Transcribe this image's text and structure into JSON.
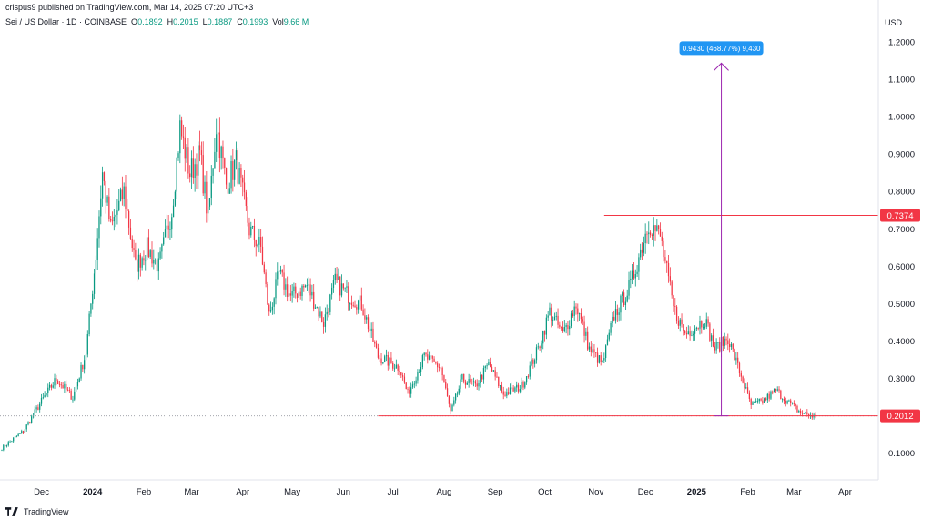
{
  "attribution": "crispus9 published on TradingView.com, Mar 14, 2025 07:20 UTC+3",
  "symbol": {
    "name": "Sei / US Dollar · 1D · COINBASE",
    "o_label": "O",
    "o": "0.1892",
    "h_label": "H",
    "h": "0.2015",
    "l_label": "L",
    "l": "0.1887",
    "c_label": "C",
    "c": "0.1993",
    "vol_label": "Vol",
    "vol": "9.66 M"
  },
  "currency": "USD",
  "footer": {
    "brand": "TradingView"
  },
  "colors": {
    "up": "#089981",
    "down": "#f23645",
    "line": "#f23645",
    "measure": "#9c27b0",
    "tooltip": "#2196f3",
    "label_bg": "#f23645"
  },
  "chart_data": {
    "type": "candlestick",
    "ylim": [
      0.03,
      1.24
    ],
    "y_ticks": [
      "1.2000",
      "1.1000",
      "1.0000",
      "0.9000",
      "0.8000",
      "0.7000",
      "0.6000",
      "0.5000",
      "0.4000",
      "0.3000",
      "0.1000"
    ],
    "y_tick_values": [
      1.2,
      1.1,
      1.0,
      0.9,
      0.8,
      0.7,
      0.6,
      0.5,
      0.4,
      0.3,
      0.1
    ],
    "x_ticks": [
      "Dec",
      "2024",
      "Feb",
      "Mar",
      "Apr",
      "May",
      "Jun",
      "Jul",
      "Aug",
      "Sep",
      "Oct",
      "Nov",
      "Dec",
      "2025",
      "Feb",
      "Mar",
      "Apr"
    ],
    "x_tick_dates": [
      "2023-12-01",
      "2024-01-01",
      "2024-02-01",
      "2024-03-01",
      "2024-04-01",
      "2024-05-01",
      "2024-06-01",
      "2024-07-01",
      "2024-08-01",
      "2024-09-01",
      "2024-10-01",
      "2024-11-01",
      "2024-12-01",
      "2025-01-01",
      "2025-02-01",
      "2025-03-01",
      "2025-04-01"
    ],
    "bold_ticks": [
      "2024",
      "2025"
    ],
    "date_range": [
      "2023-11-07",
      "2025-04-20"
    ],
    "anchors": [
      [
        "2023-11-07",
        0.115
      ],
      [
        "2023-11-20",
        0.16
      ],
      [
        "2023-12-01",
        0.24
      ],
      [
        "2023-12-10",
        0.3
      ],
      [
        "2023-12-20",
        0.25
      ],
      [
        "2023-12-28",
        0.37
      ],
      [
        "2024-01-03",
        0.63
      ],
      [
        "2024-01-07",
        0.85
      ],
      [
        "2024-01-12",
        0.7
      ],
      [
        "2024-01-20",
        0.8
      ],
      [
        "2024-01-27",
        0.6
      ],
      [
        "2024-02-03",
        0.65
      ],
      [
        "2024-02-10",
        0.6
      ],
      [
        "2024-02-18",
        0.75
      ],
      [
        "2024-02-23",
        0.97
      ],
      [
        "2024-02-29",
        0.85
      ],
      [
        "2024-03-06",
        0.9
      ],
      [
        "2024-03-11",
        0.73
      ],
      [
        "2024-03-16",
        0.98
      ],
      [
        "2024-03-22",
        0.82
      ],
      [
        "2024-03-28",
        0.88
      ],
      [
        "2024-04-05",
        0.7
      ],
      [
        "2024-04-12",
        0.65
      ],
      [
        "2024-04-17",
        0.47
      ],
      [
        "2024-04-23",
        0.58
      ],
      [
        "2024-04-30",
        0.52
      ],
      [
        "2024-05-10",
        0.55
      ],
      [
        "2024-05-20",
        0.45
      ],
      [
        "2024-05-27",
        0.56
      ],
      [
        "2024-06-05",
        0.52
      ],
      [
        "2024-06-12",
        0.5
      ],
      [
        "2024-06-22",
        0.36
      ],
      [
        "2024-07-05",
        0.33
      ],
      [
        "2024-07-10",
        0.26
      ],
      [
        "2024-07-20",
        0.36
      ],
      [
        "2024-07-30",
        0.33
      ],
      [
        "2024-08-05",
        0.21
      ],
      [
        "2024-08-12",
        0.3
      ],
      [
        "2024-08-20",
        0.28
      ],
      [
        "2024-08-28",
        0.34
      ],
      [
        "2024-09-06",
        0.26
      ],
      [
        "2024-09-17",
        0.28
      ],
      [
        "2024-09-27",
        0.38
      ],
      [
        "2024-10-04",
        0.48
      ],
      [
        "2024-10-12",
        0.42
      ],
      [
        "2024-10-20",
        0.5
      ],
      [
        "2024-10-28",
        0.38
      ],
      [
        "2024-11-05",
        0.34
      ],
      [
        "2024-11-12",
        0.47
      ],
      [
        "2024-11-22",
        0.55
      ],
      [
        "2024-12-03",
        0.72
      ],
      [
        "2024-12-10",
        0.68
      ],
      [
        "2024-12-18",
        0.49
      ],
      [
        "2024-12-25",
        0.42
      ],
      [
        "2025-01-06",
        0.46
      ],
      [
        "2025-01-12",
        0.38
      ],
      [
        "2025-01-20",
        0.41
      ],
      [
        "2025-01-27",
        0.32
      ],
      [
        "2025-02-03",
        0.23
      ],
      [
        "2025-02-10",
        0.24
      ],
      [
        "2025-02-18",
        0.27
      ],
      [
        "2025-02-25",
        0.24
      ],
      [
        "2025-03-05",
        0.21
      ],
      [
        "2025-03-14",
        0.1993
      ]
    ],
    "hlines": [
      {
        "value": 0.7374,
        "label": "0.7374",
        "from": "2024-11-06"
      },
      {
        "value": 0.2012,
        "label": "0.2012",
        "from": "2024-06-22"
      }
    ],
    "dotted_line": 0.2012,
    "measure": {
      "date": "2025-01-16",
      "from": 0.2012,
      "to": 1.1442,
      "label": "0.9430 (468.77%) 9,430"
    }
  }
}
